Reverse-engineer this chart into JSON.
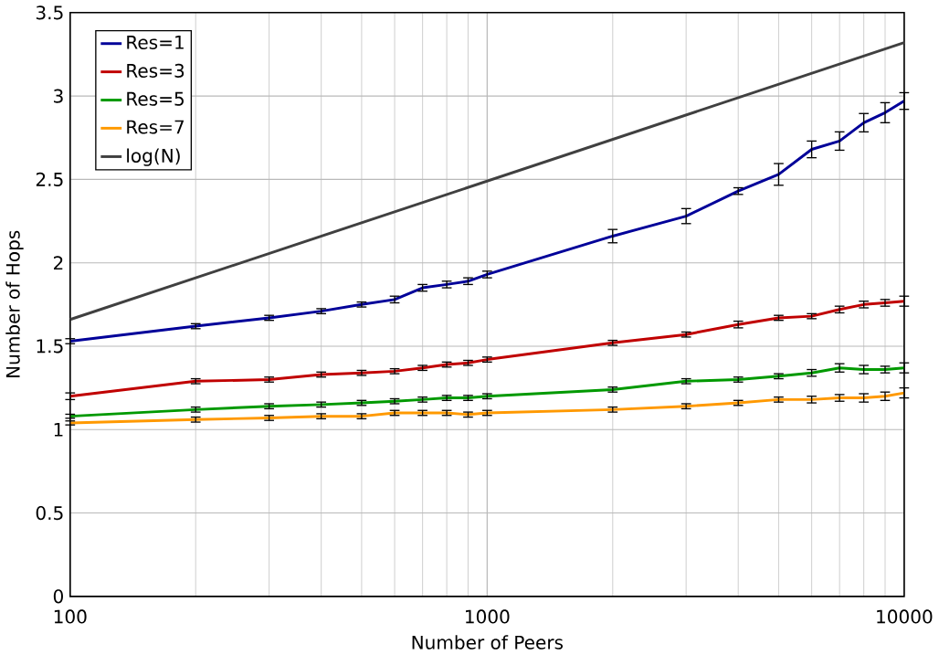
{
  "chart_data": {
    "type": "line",
    "xlabel": "Number of Peers",
    "ylabel": "Number of Hops",
    "log": "x",
    "grid": true,
    "legend": "top left",
    "marker": "none",
    "line_style": "solid",
    "xlim": [
      100,
      10000
    ],
    "xticks": [
      100,
      1000,
      10000
    ],
    "ylim": [
      0,
      3.5
    ],
    "yticks": [
      0,
      0.5,
      1,
      1.5,
      2,
      2.5,
      3,
      3.5
    ],
    "x": [
      100,
      200,
      300,
      400,
      500,
      600,
      700,
      800,
      900,
      1000,
      2000,
      3000,
      4000,
      5000,
      6000,
      7000,
      8000,
      9000,
      10000
    ],
    "series": [
      {
        "name": "Res=1",
        "color": "#000099",
        "values": [
          1.53,
          1.62,
          1.67,
          1.71,
          1.75,
          1.78,
          1.85,
          1.87,
          1.89,
          1.93,
          2.16,
          2.28,
          2.43,
          2.53,
          2.68,
          2.73,
          2.84,
          2.9,
          2.97
        ],
        "errors": [
          0.015,
          0.015,
          0.015,
          0.015,
          0.015,
          0.02,
          0.02,
          0.02,
          0.02,
          0.02,
          0.04,
          0.045,
          0.02,
          0.065,
          0.05,
          0.055,
          0.055,
          0.06,
          0.05
        ]
      },
      {
        "name": "Res=3",
        "color": "#c00000",
        "values": [
          1.2,
          1.29,
          1.3,
          1.33,
          1.34,
          1.35,
          1.37,
          1.39,
          1.4,
          1.42,
          1.52,
          1.57,
          1.63,
          1.67,
          1.68,
          1.72,
          1.75,
          1.76,
          1.77
        ],
        "errors": [
          0.02,
          0.015,
          0.015,
          0.015,
          0.015,
          0.015,
          0.015,
          0.015,
          0.015,
          0.015,
          0.015,
          0.015,
          0.02,
          0.015,
          0.015,
          0.02,
          0.02,
          0.02,
          0.03
        ]
      },
      {
        "name": "Res=5",
        "color": "#009900",
        "values": [
          1.08,
          1.12,
          1.14,
          1.15,
          1.16,
          1.17,
          1.18,
          1.19,
          1.19,
          1.2,
          1.24,
          1.29,
          1.3,
          1.32,
          1.34,
          1.37,
          1.36,
          1.36,
          1.37
        ],
        "errors": [
          0.012,
          0.015,
          0.015,
          0.015,
          0.015,
          0.015,
          0.015,
          0.015,
          0.015,
          0.015,
          0.015,
          0.015,
          0.015,
          0.015,
          0.02,
          0.025,
          0.025,
          0.02,
          0.03
        ]
      },
      {
        "name": "Res=7",
        "color": "#ff9900",
        "values": [
          1.04,
          1.06,
          1.07,
          1.08,
          1.08,
          1.1,
          1.1,
          1.1,
          1.09,
          1.1,
          1.12,
          1.14,
          1.16,
          1.18,
          1.18,
          1.19,
          1.19,
          1.2,
          1.22
        ],
        "errors": [
          0.012,
          0.015,
          0.015,
          0.015,
          0.015,
          0.015,
          0.015,
          0.015,
          0.015,
          0.015,
          0.015,
          0.015,
          0.015,
          0.015,
          0.02,
          0.02,
          0.025,
          0.025,
          0.03
        ]
      },
      {
        "name": "log(N)",
        "color": "#404040",
        "x": [
          100,
          10000
        ],
        "values": [
          1.66,
          3.32
        ]
      }
    ]
  }
}
